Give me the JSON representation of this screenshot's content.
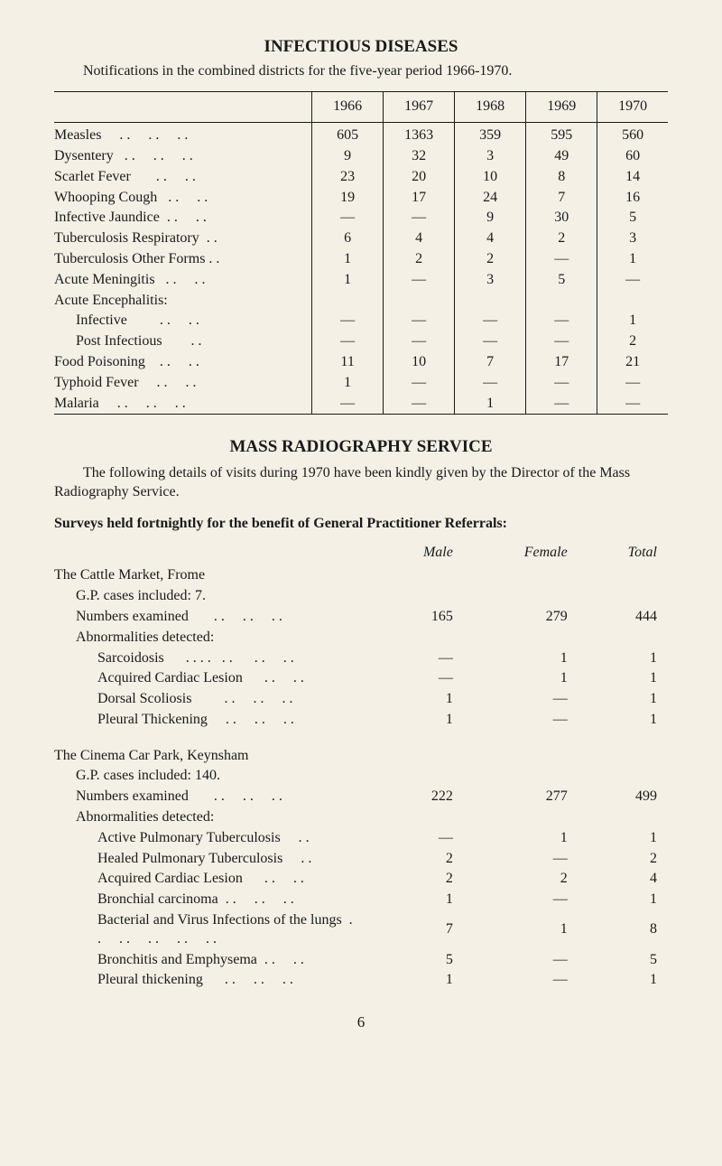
{
  "title1": "INFECTIOUS DISEASES",
  "intro": "Notifications in the combined districts for the five-year period 1966-1970.",
  "main_table": {
    "headers": [
      "",
      "1966",
      "1967",
      "1968",
      "1969",
      "1970"
    ],
    "rows": [
      {
        "label": "Measles     . .     . .     . .",
        "vals": [
          "605",
          "1363",
          "359",
          "595",
          "560"
        ]
      },
      {
        "label": "Dysentery   . .     . .     . .",
        "vals": [
          "9",
          "32",
          "3",
          "49",
          "60"
        ]
      },
      {
        "label": "Scarlet Fever       . .     . .",
        "vals": [
          "23",
          "20",
          "10",
          "8",
          "14"
        ]
      },
      {
        "label": "Whooping Cough   . .     . .",
        "vals": [
          "19",
          "17",
          "24",
          "7",
          "16"
        ]
      },
      {
        "label": "Infective Jaundice  . .     . .",
        "vals": [
          "—",
          "—",
          "9",
          "30",
          "5"
        ]
      },
      {
        "label": "Tuberculosis Respiratory  . .",
        "vals": [
          "6",
          "4",
          "4",
          "2",
          "3"
        ]
      },
      {
        "label": "Tuberculosis Other Forms . .",
        "vals": [
          "1",
          "2",
          "2",
          "—",
          "1"
        ]
      },
      {
        "label": "Acute Meningitis   . .     . .",
        "vals": [
          "1",
          "—",
          "3",
          "5",
          "—"
        ]
      },
      {
        "label": "Acute Encephalitis:",
        "vals": [
          "",
          "",
          "",
          "",
          ""
        ]
      },
      {
        "label": "Infective         . .     . .",
        "indent": true,
        "vals": [
          "—",
          "—",
          "—",
          "—",
          "1"
        ]
      },
      {
        "label": "Post Infectious        . .",
        "indent": true,
        "vals": [
          "—",
          "—",
          "—",
          "—",
          "2"
        ]
      },
      {
        "label": "Food Poisoning    . .     . .",
        "vals": [
          "11",
          "10",
          "7",
          "17",
          "21"
        ]
      },
      {
        "label": "Typhoid Fever     . .     . .",
        "vals": [
          "1",
          "—",
          "—",
          "—",
          "—"
        ]
      },
      {
        "label": "Malaria     . .     . .     . .",
        "vals": [
          "—",
          "—",
          "1",
          "—",
          "—"
        ]
      }
    ]
  },
  "title2": "MASS RADIOGRAPHY SERVICE",
  "para2": "The following details of visits during 1970 have been kindly given by the Director of the Mass Radiography Service.",
  "surveys_heading": "Surveys held fortnightly for the benefit of General Practitioner Referrals:",
  "survey_headers": [
    "",
    "Male",
    "Female",
    "Total"
  ],
  "locations": [
    {
      "name": "The Cattle Market, Frome",
      "gp": "G.P. cases included: 7.",
      "rows": [
        {
          "label": "Numbers examined       . .     . .     . .",
          "sub": 1,
          "vals": [
            "165",
            "279",
            "444"
          ]
        },
        {
          "label": "Abnormalities detected:",
          "sub": 1,
          "vals": [
            "",
            "",
            ""
          ]
        },
        {
          "label": "Sarcoidosis      . . . .   . .      . .     . .",
          "sub": 2,
          "vals": [
            "—",
            "1",
            "1"
          ]
        },
        {
          "label": "Acquired Cardiac Lesion      . .     . .",
          "sub": 2,
          "vals": [
            "—",
            "1",
            "1"
          ]
        },
        {
          "label": "Dorsal Scoliosis         . .     . .     . .",
          "sub": 2,
          "vals": [
            "1",
            "—",
            "1"
          ]
        },
        {
          "label": "Pleural Thickening     . .     . .     . .",
          "sub": 2,
          "vals": [
            "1",
            "—",
            "1"
          ]
        }
      ]
    },
    {
      "name": "The Cinema Car Park, Keynsham",
      "gp": "G.P. cases included: 140.",
      "rows": [
        {
          "label": "Numbers examined       . .     . .     . .",
          "sub": 1,
          "vals": [
            "222",
            "277",
            "499"
          ]
        },
        {
          "label": "Abnormalities detected:",
          "sub": 1,
          "vals": [
            "",
            "",
            ""
          ]
        },
        {
          "label": "Active Pulmonary Tuberculosis     . .",
          "sub": 2,
          "vals": [
            "—",
            "1",
            "1"
          ]
        },
        {
          "label": "Healed Pulmonary Tuberculosis     . .",
          "sub": 2,
          "vals": [
            "2",
            "—",
            "2"
          ]
        },
        {
          "label": "Acquired Cardiac Lesion      . .     . .",
          "sub": 2,
          "vals": [
            "2",
            "2",
            "4"
          ]
        },
        {
          "label": "Bronchial carcinoma  . .     . .     . .",
          "sub": 2,
          "vals": [
            "1",
            "—",
            "1"
          ]
        },
        {
          "label": "Bacterial and Virus Infections of the lungs  . .     . .     . .     . .     . .",
          "sub": 2,
          "vals": [
            "7",
            "1",
            "8"
          ]
        },
        {
          "label": "Bronchitis and Emphysema  . .     . .",
          "sub": 2,
          "vals": [
            "5",
            "—",
            "5"
          ]
        },
        {
          "label": "Pleural thickening      . .     . .     . .",
          "sub": 2,
          "vals": [
            "1",
            "—",
            "1"
          ]
        }
      ]
    }
  ],
  "page_num": "6"
}
